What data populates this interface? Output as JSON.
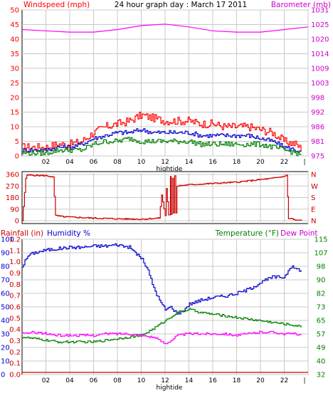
{
  "chart_data": [
    {
      "type": "line",
      "title": "24 hour graph day : March 17 2011",
      "ylabel_left": "Windspeed (mph)",
      "ylabel_right": "Barometer (mb)",
      "xlabel": "hightide",
      "x_ticks": [
        "02",
        "04",
        "06",
        "08",
        "10",
        "12",
        "14",
        "16",
        "18",
        "20",
        "22",
        "|"
      ],
      "x_range": [
        0,
        24
      ],
      "y_left_ticks": [
        "0",
        "5",
        "10",
        "15",
        "20",
        "25",
        "30",
        "35",
        "40",
        "45",
        "50"
      ],
      "y_left_range": [
        0,
        50
      ],
      "y_right_ticks": [
        "975",
        "981",
        "986",
        "992",
        "998",
        "1003",
        "1009",
        "1014",
        "1020",
        "1025",
        "1031"
      ],
      "y_right_range": [
        975,
        1031
      ],
      "grid": true,
      "colors": {
        "gust": "#ff0000",
        "avg": "#0000cc",
        "min": "#008000",
        "barometer": "#ff00ff",
        "left_axis": "#ff0000",
        "right_axis": "#cc00cc"
      },
      "series": [
        {
          "id": "gust",
          "x": [
            0,
            1,
            2,
            3,
            4,
            5,
            6,
            7,
            8,
            9,
            10,
            11,
            12,
            13,
            14,
            15,
            16,
            17,
            18,
            19,
            20,
            21,
            22,
            23,
            23.5
          ],
          "values": [
            3,
            3,
            3,
            4,
            4,
            5,
            8,
            10,
            11,
            12,
            14,
            13,
            12,
            12,
            12,
            11,
            11,
            10,
            10,
            10,
            9,
            8,
            5,
            4,
            2
          ]
        },
        {
          "id": "avg",
          "x": [
            0,
            1,
            2,
            3,
            4,
            5,
            6,
            7,
            8,
            9,
            10,
            11,
            12,
            13,
            14,
            15,
            16,
            17,
            18,
            19,
            20,
            21,
            22,
            23,
            23.5
          ],
          "values": [
            2,
            2,
            2,
            3,
            3,
            4,
            6,
            7,
            8,
            8,
            9,
            8,
            8,
            8,
            8,
            7,
            7,
            7,
            7,
            7,
            6,
            5,
            3,
            2,
            1
          ]
        },
        {
          "id": "min",
          "x": [
            0,
            1,
            2,
            3,
            4,
            5,
            6,
            7,
            8,
            9,
            10,
            11,
            12,
            13,
            14,
            15,
            16,
            17,
            18,
            19,
            20,
            21,
            22,
            23,
            23.5
          ],
          "values": [
            1,
            1,
            1,
            2,
            2,
            2,
            4,
            5,
            5,
            6,
            5,
            5,
            5,
            5,
            5,
            4,
            4,
            4,
            4,
            4,
            4,
            3,
            2,
            1,
            0
          ]
        },
        {
          "id": "barometer",
          "axis": "right",
          "x": [
            0,
            2,
            4,
            6,
            8,
            10,
            12,
            14,
            16,
            18,
            20,
            22,
            24
          ],
          "values": [
            1023.5,
            1023,
            1022.5,
            1022.5,
            1023.5,
            1025,
            1025.6,
            1024.5,
            1023,
            1022.5,
            1022.5,
            1023.5,
            1024.5
          ]
        }
      ]
    },
    {
      "type": "line",
      "y_left_ticks": [
        "0",
        "90",
        "180",
        "270",
        "360"
      ],
      "y_left_range": [
        0,
        360
      ],
      "y_right_ticks": [
        "N",
        "W",
        "S",
        "E",
        "N"
      ],
      "x_range": [
        0,
        24
      ],
      "grid": true,
      "colors": {
        "direction": "#cc0000"
      },
      "series": [
        {
          "id": "wind-direction",
          "x": [
            0,
            0.3,
            0.4,
            2,
            2.6,
            2.8,
            3.5,
            6,
            8,
            10,
            11.5,
            11.7,
            12,
            12.1,
            12.3,
            12.45,
            12.5,
            12.6,
            12.7,
            12.8,
            12.9,
            13,
            14,
            16,
            18,
            20,
            21,
            22,
            22.2,
            22.35,
            23,
            23.5
          ],
          "values": [
            0,
            330,
            355,
            350,
            340,
            40,
            30,
            20,
            15,
            12,
            20,
            200,
            40,
            250,
            45,
            345,
            50,
            330,
            60,
            350,
            60,
            270,
            280,
            290,
            300,
            320,
            330,
            345,
            355,
            20,
            5,
            5
          ]
        }
      ]
    },
    {
      "type": "line",
      "xlabel": "hightide",
      "ylabel_left_1": "Rainfall (in)",
      "ylabel_left_2": "Humidity %",
      "ylabel_right_1": "Temperature (°F)",
      "ylabel_right_2": "Dew Point",
      "x_ticks": [
        "02",
        "04",
        "06",
        "08",
        "10",
        "12",
        "14",
        "16",
        "18",
        "20",
        "22",
        "|"
      ],
      "x_range": [
        0,
        24
      ],
      "rain_ticks": [
        "0.0",
        "0.1",
        "0.2",
        "0.3",
        "0.4",
        "0.5",
        "0.6",
        "0.7",
        "0.8",
        "0.9",
        "1.0",
        "1.1",
        "1.2"
      ],
      "rain_range": [
        0,
        1.2
      ],
      "humidity_ticks": [
        "0",
        "10",
        "20",
        "30",
        "40",
        "50",
        "60",
        "70",
        "80",
        "90",
        "100"
      ],
      "humidity_range": [
        0,
        100
      ],
      "temp_ticks": [
        "32",
        "40",
        "49",
        "57",
        "65",
        "73",
        "82",
        "90",
        "98",
        "107",
        "115"
      ],
      "temp_range": [
        32,
        115
      ],
      "grid": true,
      "colors": {
        "humidity": "#0000cc",
        "temperature": "#008000",
        "dewpoint": "#ff00ff",
        "rainfall": "#cc0000",
        "rain_axis": "#cc0000",
        "humidity_axis": "#0000cc",
        "temp_axis": "#008000",
        "dew_axis": "#cc00cc"
      },
      "series": [
        {
          "id": "humidity",
          "x": [
            0,
            0.5,
            1,
            2,
            3,
            4,
            5,
            6,
            7,
            8,
            9,
            9.5,
            10,
            10.5,
            11,
            11.5,
            12,
            12.5,
            13,
            13.5,
            14,
            15,
            16,
            17,
            18,
            19,
            20,
            21,
            22,
            22.5,
            23,
            23.5
          ],
          "values": [
            80,
            88,
            90,
            92,
            93,
            94,
            94,
            95,
            95,
            96,
            94,
            90,
            86,
            78,
            65,
            55,
            48,
            50,
            45,
            47,
            52,
            55,
            57,
            58,
            60,
            63,
            68,
            72,
            72,
            80,
            78,
            77
          ]
        },
        {
          "id": "temperature",
          "axis": "right",
          "x": [
            0,
            1,
            2,
            3,
            4,
            5,
            6,
            7,
            8,
            9,
            10,
            11,
            12,
            13,
            14,
            15,
            16,
            17,
            18,
            19,
            20,
            21,
            22,
            23,
            23.5
          ],
          "values": [
            55,
            54,
            53,
            52,
            52,
            52,
            52,
            53,
            54,
            55,
            56,
            60,
            65,
            70,
            72,
            70,
            69,
            68,
            67,
            66,
            65,
            64,
            63,
            62,
            61
          ]
        },
        {
          "id": "dewpoint",
          "axis": "right",
          "x": [
            0,
            1,
            2,
            3,
            4,
            5,
            6,
            7,
            8,
            9,
            10,
            11,
            11.5,
            12,
            12.5,
            13,
            14,
            15,
            16,
            17,
            18,
            19,
            20,
            21,
            22,
            23,
            23.5
          ],
          "values": [
            57,
            58,
            57,
            56,
            56,
            56,
            56,
            57,
            57,
            57,
            56,
            55,
            53,
            51,
            53,
            56,
            57,
            57,
            57,
            57,
            56,
            57,
            58,
            58,
            57,
            57,
            56
          ]
        },
        {
          "id": "rainfall",
          "x": [
            0,
            24
          ],
          "values": [
            0,
            0
          ]
        }
      ]
    }
  ]
}
